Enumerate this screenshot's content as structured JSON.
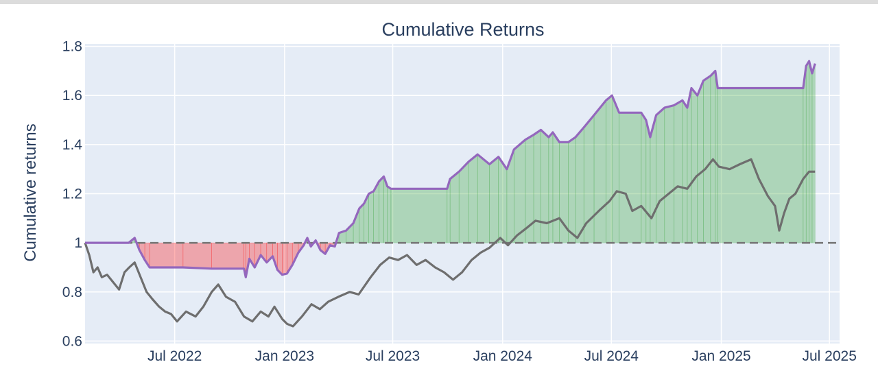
{
  "chart_data": {
    "type": "line",
    "title": "Cumulative Returns",
    "xlabel": "",
    "ylabel": "Cumulative returns",
    "ylim": [
      0.59,
      1.81
    ],
    "xlim": [
      "2022-02-01",
      "2025-07-18"
    ],
    "yticks": [
      {
        "value": 0.6,
        "label": "0.6"
      },
      {
        "value": 0.8,
        "label": "0.8"
      },
      {
        "value": 1.0,
        "label": "1"
      },
      {
        "value": 1.2,
        "label": "1.2"
      },
      {
        "value": 1.4,
        "label": "1.4"
      },
      {
        "value": 1.6,
        "label": "1.6"
      },
      {
        "value": 1.8,
        "label": "1.8"
      }
    ],
    "xticks": [
      {
        "date": "2022-07-01",
        "label": "Jul 2022"
      },
      {
        "date": "2023-01-01",
        "label": "Jan 2023"
      },
      {
        "date": "2023-07-01",
        "label": "Jul 2023"
      },
      {
        "date": "2024-01-01",
        "label": "Jan 2024"
      },
      {
        "date": "2024-07-01",
        "label": "Jul 2024"
      },
      {
        "date": "2025-01-01",
        "label": "Jan 2025"
      },
      {
        "date": "2025-07-01",
        "label": "Jul 2025"
      }
    ],
    "baseline": 1.0,
    "grid": true,
    "colors": {
      "plot_bg": "#e5ecf6",
      "grid": "#ffffff",
      "strategy": "#9467bd",
      "benchmark": "#6e6e6e",
      "baseline": "#777777",
      "fill_above": "#2ca02c",
      "fill_below": "#ff0000",
      "text": "#2a3f5f"
    },
    "series": [
      {
        "role": "strategy",
        "points": [
          [
            "2022-02-01",
            1.0
          ],
          [
            "2022-03-01",
            1.0
          ],
          [
            "2022-04-15",
            1.0
          ],
          [
            "2022-04-25",
            1.02
          ],
          [
            "2022-05-03",
            0.97
          ],
          [
            "2022-05-12",
            0.93
          ],
          [
            "2022-05-20",
            0.9
          ],
          [
            "2022-07-15",
            0.9
          ],
          [
            "2022-09-01",
            0.895
          ],
          [
            "2022-10-25",
            0.895
          ],
          [
            "2022-10-28",
            0.86
          ],
          [
            "2022-11-03",
            0.935
          ],
          [
            "2022-11-12",
            0.9
          ],
          [
            "2022-11-22",
            0.95
          ],
          [
            "2022-12-02",
            0.92
          ],
          [
            "2022-12-12",
            0.945
          ],
          [
            "2022-12-20",
            0.89
          ],
          [
            "2022-12-28",
            0.87
          ],
          [
            "2023-01-05",
            0.875
          ],
          [
            "2023-01-14",
            0.91
          ],
          [
            "2023-01-24",
            0.96
          ],
          [
            "2023-02-02",
            0.99
          ],
          [
            "2023-02-08",
            1.02
          ],
          [
            "2023-02-14",
            0.985
          ],
          [
            "2023-02-22",
            1.01
          ],
          [
            "2023-03-02",
            0.97
          ],
          [
            "2023-03-10",
            0.955
          ],
          [
            "2023-03-18",
            0.99
          ],
          [
            "2023-03-26",
            0.985
          ],
          [
            "2023-04-02",
            1.04
          ],
          [
            "2023-04-14",
            1.05
          ],
          [
            "2023-04-26",
            1.08
          ],
          [
            "2023-05-06",
            1.14
          ],
          [
            "2023-05-14",
            1.16
          ],
          [
            "2023-05-22",
            1.2
          ],
          [
            "2023-05-30",
            1.21
          ],
          [
            "2023-06-08",
            1.25
          ],
          [
            "2023-06-16",
            1.27
          ],
          [
            "2023-06-22",
            1.23
          ],
          [
            "2023-06-28",
            1.22
          ],
          [
            "2023-09-30",
            1.22
          ],
          [
            "2023-10-05",
            1.26
          ],
          [
            "2023-10-20",
            1.29
          ],
          [
            "2023-11-05",
            1.33
          ],
          [
            "2023-11-20",
            1.36
          ],
          [
            "2023-12-10",
            1.32
          ],
          [
            "2023-12-25",
            1.35
          ],
          [
            "2024-01-08",
            1.3
          ],
          [
            "2024-01-20",
            1.38
          ],
          [
            "2024-02-08",
            1.42
          ],
          [
            "2024-02-22",
            1.44
          ],
          [
            "2024-03-05",
            1.46
          ],
          [
            "2024-03-18",
            1.43
          ],
          [
            "2024-03-25",
            1.45
          ],
          [
            "2024-04-05",
            1.41
          ],
          [
            "2024-04-20",
            1.41
          ],
          [
            "2024-05-02",
            1.43
          ],
          [
            "2024-05-16",
            1.47
          ],
          [
            "2024-06-02",
            1.52
          ],
          [
            "2024-06-22",
            1.58
          ],
          [
            "2024-07-02",
            1.6
          ],
          [
            "2024-07-14",
            1.53
          ],
          [
            "2024-08-20",
            1.53
          ],
          [
            "2024-08-28",
            1.5
          ],
          [
            "2024-09-04",
            1.43
          ],
          [
            "2024-09-14",
            1.52
          ],
          [
            "2024-09-28",
            1.55
          ],
          [
            "2024-10-14",
            1.56
          ],
          [
            "2024-10-28",
            1.58
          ],
          [
            "2024-11-05",
            1.55
          ],
          [
            "2024-11-12",
            1.63
          ],
          [
            "2024-11-22",
            1.6
          ],
          [
            "2024-12-02",
            1.66
          ],
          [
            "2024-12-14",
            1.68
          ],
          [
            "2024-12-22",
            1.7
          ],
          [
            "2024-12-26",
            1.63
          ],
          [
            "2025-05-18",
            1.63
          ],
          [
            "2025-05-23",
            1.72
          ],
          [
            "2025-05-28",
            1.74
          ],
          [
            "2025-06-02",
            1.69
          ],
          [
            "2025-06-07",
            1.73
          ]
        ]
      },
      {
        "role": "benchmark",
        "points": [
          [
            "2022-02-01",
            1.0
          ],
          [
            "2022-02-08",
            0.95
          ],
          [
            "2022-02-15",
            0.88
          ],
          [
            "2022-02-22",
            0.9
          ],
          [
            "2022-03-01",
            0.86
          ],
          [
            "2022-03-10",
            0.87
          ],
          [
            "2022-03-20",
            0.84
          ],
          [
            "2022-03-30",
            0.81
          ],
          [
            "2022-04-08",
            0.88
          ],
          [
            "2022-04-16",
            0.9
          ],
          [
            "2022-04-25",
            0.92
          ],
          [
            "2022-05-05",
            0.86
          ],
          [
            "2022-05-15",
            0.8
          ],
          [
            "2022-05-25",
            0.77
          ],
          [
            "2022-06-05",
            0.74
          ],
          [
            "2022-06-15",
            0.72
          ],
          [
            "2022-06-25",
            0.71
          ],
          [
            "2022-07-05",
            0.68
          ],
          [
            "2022-07-20",
            0.72
          ],
          [
            "2022-08-05",
            0.7
          ],
          [
            "2022-08-18",
            0.74
          ],
          [
            "2022-09-01",
            0.8
          ],
          [
            "2022-09-12",
            0.83
          ],
          [
            "2022-09-25",
            0.78
          ],
          [
            "2022-10-10",
            0.76
          ],
          [
            "2022-10-25",
            0.7
          ],
          [
            "2022-11-08",
            0.68
          ],
          [
            "2022-11-22",
            0.72
          ],
          [
            "2022-12-05",
            0.7
          ],
          [
            "2022-12-15",
            0.74
          ],
          [
            "2022-12-28",
            0.69
          ],
          [
            "2023-01-05",
            0.67
          ],
          [
            "2023-01-15",
            0.66
          ],
          [
            "2023-01-30",
            0.7
          ],
          [
            "2023-02-15",
            0.75
          ],
          [
            "2023-03-01",
            0.73
          ],
          [
            "2023-03-15",
            0.76
          ],
          [
            "2023-04-01",
            0.78
          ],
          [
            "2023-04-20",
            0.8
          ],
          [
            "2023-05-05",
            0.79
          ],
          [
            "2023-05-25",
            0.86
          ],
          [
            "2023-06-10",
            0.91
          ],
          [
            "2023-06-25",
            0.94
          ],
          [
            "2023-07-10",
            0.93
          ],
          [
            "2023-07-25",
            0.95
          ],
          [
            "2023-08-10",
            0.91
          ],
          [
            "2023-08-25",
            0.93
          ],
          [
            "2023-09-10",
            0.9
          ],
          [
            "2023-09-25",
            0.88
          ],
          [
            "2023-10-10",
            0.85
          ],
          [
            "2023-10-25",
            0.88
          ],
          [
            "2023-11-10",
            0.93
          ],
          [
            "2023-11-25",
            0.96
          ],
          [
            "2023-12-10",
            0.98
          ],
          [
            "2023-12-28",
            1.02
          ],
          [
            "2024-01-10",
            0.99
          ],
          [
            "2024-01-25",
            1.03
          ],
          [
            "2024-02-10",
            1.06
          ],
          [
            "2024-02-25",
            1.09
          ],
          [
            "2024-03-15",
            1.08
          ],
          [
            "2024-04-05",
            1.1
          ],
          [
            "2024-04-20",
            1.05
          ],
          [
            "2024-05-05",
            1.02
          ],
          [
            "2024-05-20",
            1.08
          ],
          [
            "2024-06-10",
            1.13
          ],
          [
            "2024-06-28",
            1.17
          ],
          [
            "2024-07-10",
            1.21
          ],
          [
            "2024-07-25",
            1.2
          ],
          [
            "2024-08-05",
            1.13
          ],
          [
            "2024-08-20",
            1.15
          ],
          [
            "2024-09-06",
            1.1
          ],
          [
            "2024-09-20",
            1.17
          ],
          [
            "2024-10-05",
            1.2
          ],
          [
            "2024-10-20",
            1.23
          ],
          [
            "2024-11-05",
            1.22
          ],
          [
            "2024-11-20",
            1.27
          ],
          [
            "2024-12-05",
            1.3
          ],
          [
            "2024-12-18",
            1.34
          ],
          [
            "2024-12-28",
            1.31
          ],
          [
            "2025-01-15",
            1.3
          ],
          [
            "2025-02-01",
            1.32
          ],
          [
            "2025-02-20",
            1.34
          ],
          [
            "2025-03-05",
            1.26
          ],
          [
            "2025-03-20",
            1.19
          ],
          [
            "2025-04-01",
            1.15
          ],
          [
            "2025-04-08",
            1.05
          ],
          [
            "2025-04-16",
            1.12
          ],
          [
            "2025-04-25",
            1.18
          ],
          [
            "2025-05-05",
            1.2
          ],
          [
            "2025-05-18",
            1.26
          ],
          [
            "2025-05-28",
            1.29
          ],
          [
            "2025-06-07",
            1.29
          ]
        ]
      }
    ]
  }
}
